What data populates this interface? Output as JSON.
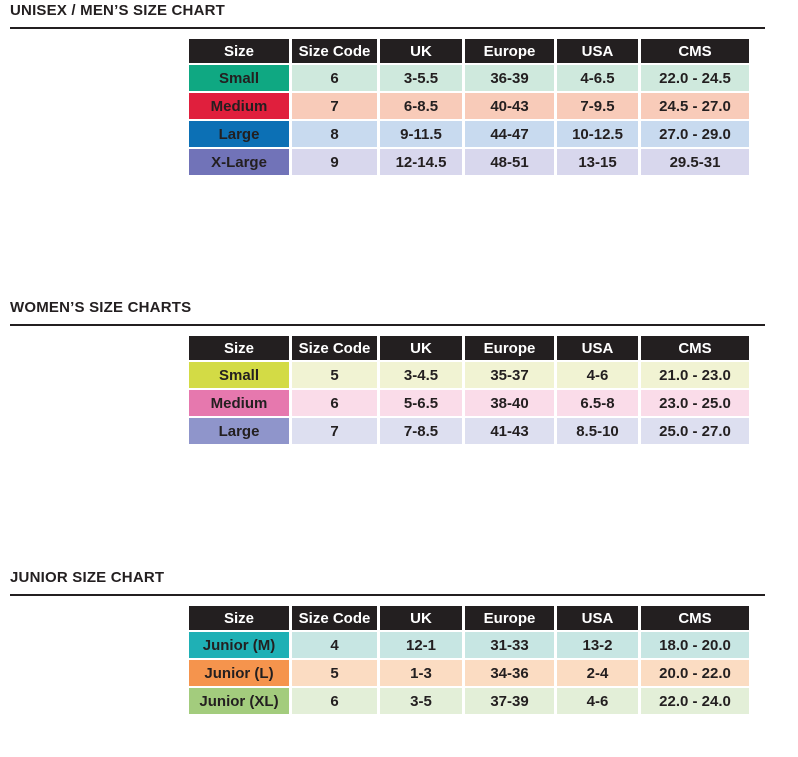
{
  "colors": {
    "header_bg": "#231F20",
    "header_text": "#FFFFFF",
    "body_text": "#231F20",
    "rule": "#231F20",
    "page_bg": "#FFFFFF"
  },
  "sections": [
    {
      "title": "UNISEX / MEN’S SIZE CHART",
      "columns": [
        "Size",
        "Size Code",
        "UK",
        "Europe",
        "USA",
        "CMS"
      ],
      "rows": [
        {
          "size": "Small",
          "label_bg": "#0FA882",
          "cell_bg": "#CFE9DD",
          "values": [
            "6",
            "3-5.5",
            "36-39",
            "4-6.5",
            "22.0 - 24.5"
          ]
        },
        {
          "size": "Medium",
          "label_bg": "#E01F3D",
          "cell_bg": "#F8CBB9",
          "values": [
            "7",
            "6-8.5",
            "40-43",
            "7-9.5",
            "24.5 - 27.0"
          ]
        },
        {
          "size": "Large",
          "label_bg": "#0C70B5",
          "cell_bg": "#C8DAEF",
          "values": [
            "8",
            "9-11.5",
            "44-47",
            "10-12.5",
            "27.0 - 29.0"
          ]
        },
        {
          "size": "X-Large",
          "label_bg": "#7173B8",
          "cell_bg": "#D8D7ED",
          "values": [
            "9",
            "12-14.5",
            "48-51",
            "13-15",
            "29.5-31"
          ]
        }
      ]
    },
    {
      "title": "WOMEN’S SIZE CHARTS",
      "columns": [
        "Size",
        "Size Code",
        "UK",
        "Europe",
        "USA",
        "CMS"
      ],
      "rows": [
        {
          "size": "Small",
          "label_bg": "#D3DB45",
          "cell_bg": "#F1F3D3",
          "values": [
            "5",
            "3-4.5",
            "35-37",
            "4-6",
            "21.0 - 23.0"
          ]
        },
        {
          "size": "Medium",
          "label_bg": "#E678AE",
          "cell_bg": "#FADCE9",
          "values": [
            "6",
            "5-6.5",
            "38-40",
            "6.5-8",
            "23.0 - 25.0"
          ]
        },
        {
          "size": "Large",
          "label_bg": "#8F95CB",
          "cell_bg": "#DDDFF0",
          "values": [
            "7",
            "7-8.5",
            "41-43",
            "8.5-10",
            "25.0 - 27.0"
          ]
        }
      ]
    },
    {
      "title": "JUNIOR SIZE CHART",
      "columns": [
        "Size",
        "Size Code",
        "UK",
        "Europe",
        "USA",
        "CMS"
      ],
      "rows": [
        {
          "size": "Junior (M)",
          "label_bg": "#1FB0B5",
          "cell_bg": "#C7E6E3",
          "values": [
            "4",
            "12-1",
            "31-33",
            "13-2",
            "18.0 - 20.0"
          ]
        },
        {
          "size": "Junior (L)",
          "label_bg": "#F5944D",
          "cell_bg": "#FBDCC2",
          "values": [
            "5",
            "1-3",
            "34-36",
            "2-4",
            "20.0 - 22.0"
          ]
        },
        {
          "size": "Junior (XL)",
          "label_bg": "#A3CC7D",
          "cell_bg": "#E3EFD8",
          "values": [
            "6",
            "3-5",
            "37-39",
            "4-6",
            "22.0 - 24.0"
          ]
        }
      ]
    }
  ]
}
